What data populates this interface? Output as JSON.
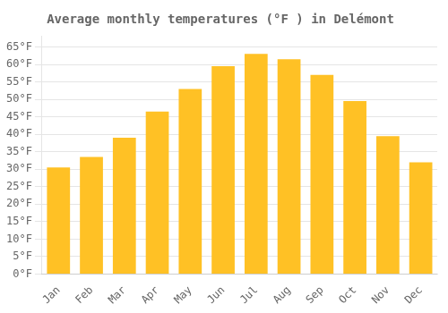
{
  "chart_data": {
    "type": "bar",
    "title": "Average monthly temperatures (°F ) in Delémont",
    "categories": [
      "Jan",
      "Feb",
      "Mar",
      "Apr",
      "May",
      "Jun",
      "Jul",
      "Aug",
      "Sep",
      "Oct",
      "Nov",
      "Dec"
    ],
    "values": [
      30.5,
      33.5,
      39.0,
      46.5,
      53.0,
      59.5,
      63.0,
      61.5,
      57.0,
      49.5,
      39.5,
      32.0
    ],
    "color": "#FFC125",
    "ylim": [
      0,
      68
    ],
    "yticks": [
      {
        "value": 0,
        "label": "0°F"
      },
      {
        "value": 5,
        "label": "5°F"
      },
      {
        "value": 10,
        "label": "10°F"
      },
      {
        "value": 15,
        "label": "15°F"
      },
      {
        "value": 20,
        "label": "20°F"
      },
      {
        "value": 25,
        "label": "25°F"
      },
      {
        "value": 30,
        "label": "30°F"
      },
      {
        "value": 35,
        "label": "35°F"
      },
      {
        "value": 40,
        "label": "40°F"
      },
      {
        "value": 45,
        "label": "45°F"
      },
      {
        "value": 50,
        "label": "50°F"
      },
      {
        "value": 55,
        "label": "55°F"
      },
      {
        "value": 60,
        "label": "60°F"
      },
      {
        "value": 65,
        "label": "65°F"
      }
    ],
    "grid": true
  }
}
